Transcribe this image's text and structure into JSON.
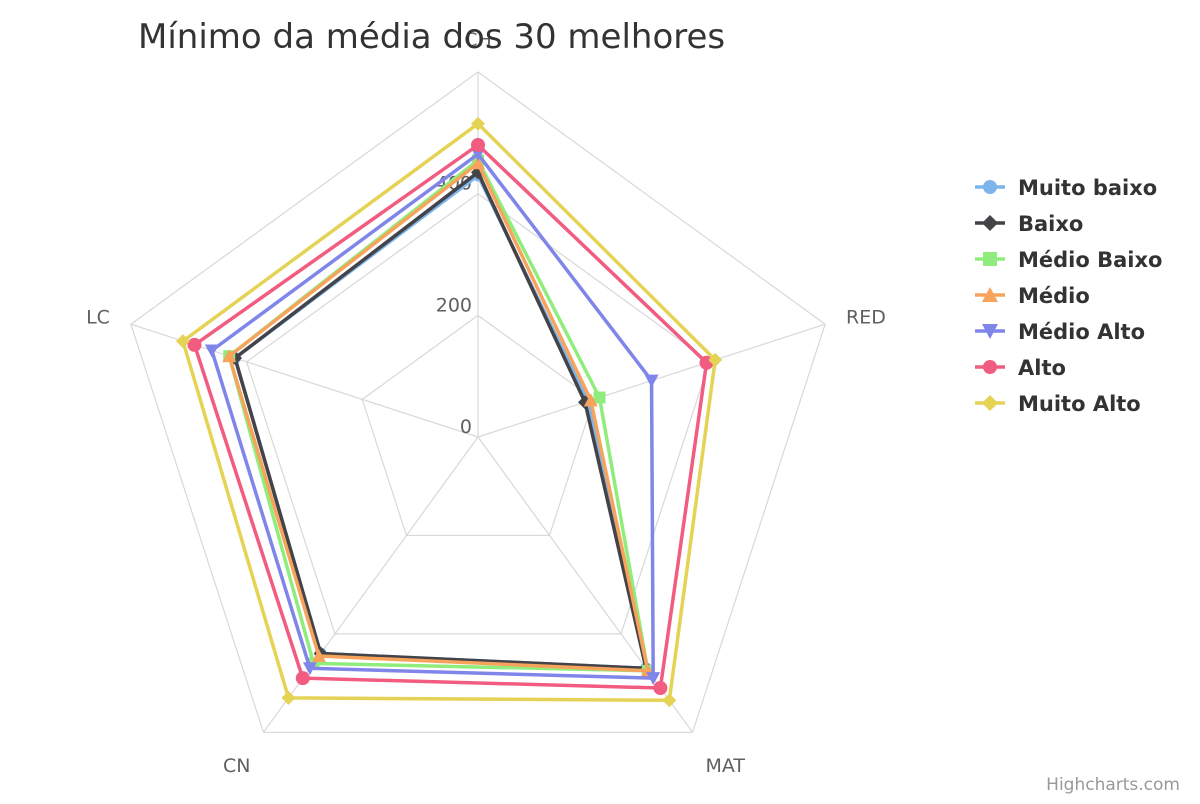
{
  "chart_data": {
    "type": "radar",
    "title": "Mínimo da média dos 30 melhores",
    "axes": [
      "CH",
      "RED",
      "MAT",
      "CN",
      "LC"
    ],
    "ticks": [
      "0",
      "200",
      "400"
    ],
    "rmax": 600,
    "grid": true,
    "legend_position": "right",
    "credits": "Highcharts.com",
    "series": [
      {
        "name": "Muito baixo",
        "color": "#7cb5ec",
        "marker": "circle",
        "values": [
          430,
          190,
          470,
          440,
          420
        ]
      },
      {
        "name": "Baixo",
        "color": "#434348",
        "marker": "diamond",
        "values": [
          435,
          185,
          470,
          440,
          420
        ]
      },
      {
        "name": "Médio Baixo",
        "color": "#90ed7d",
        "marker": "square",
        "values": [
          455,
          210,
          475,
          460,
          430
        ]
      },
      {
        "name": "Médio",
        "color": "#f7a35c",
        "marker": "triangle",
        "values": [
          450,
          195,
          475,
          445,
          430
        ]
      },
      {
        "name": "Médio Alto",
        "color": "#8085e9",
        "marker": "triangle-down",
        "values": [
          465,
          300,
          490,
          470,
          460
        ]
      },
      {
        "name": "Alto",
        "color": "#f15c80",
        "marker": "circle",
        "values": [
          480,
          395,
          510,
          490,
          490
        ]
      },
      {
        "name": "Muito Alto",
        "color": "#e4d354",
        "marker": "diamond",
        "values": [
          515,
          410,
          535,
          530,
          510
        ]
      }
    ]
  }
}
